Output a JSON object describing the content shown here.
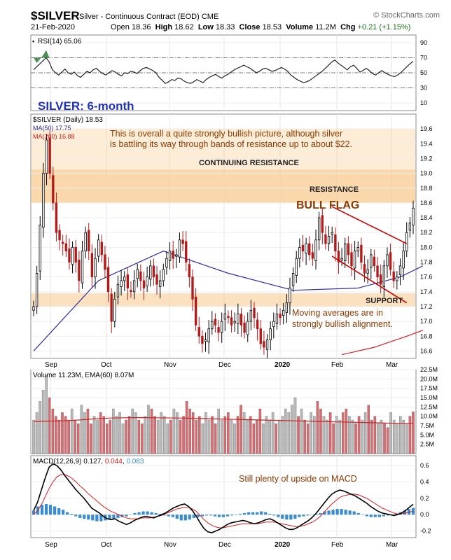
{
  "header": {
    "symbol": "$SILVER",
    "description": "Silver - Continuous Contract (EOD)",
    "exchange": "CME",
    "source": "© StockCharts.com",
    "date": "21-Feb-2020",
    "open_label": "Open",
    "open": "18.36",
    "high_label": "High",
    "high": "18.62",
    "low_label": "Low",
    "low": "18.33",
    "close_label": "Close",
    "close": "18.53",
    "volume_label": "Volume",
    "volume": "11.2M",
    "chg_label": "Chg",
    "chg": "+0.21 (+1.15%)"
  },
  "colors": {
    "background": "#ffffff",
    "candle": "#000000",
    "ma50": "#2e2ea0",
    "ma200": "#cc2222",
    "band": "#f8c98a",
    "annotation": "#8b3a00",
    "title_blue": "#2233bb",
    "vol_up": "#b8b8b8",
    "vol_down": "#d96b70",
    "macd_hist": "#3a8ccf",
    "rsi_fill": "#2e7d32",
    "flag_line": "#cc0000"
  },
  "chart_data": [
    {
      "type": "line",
      "name": "rsi-panel",
      "legend": "RSI(14) 65.06",
      "ylim": [
        0,
        100
      ],
      "y_ticks": [
        90,
        70,
        50,
        30,
        10
      ],
      "ref_lines": [
        70,
        50,
        30
      ],
      "values": [
        54,
        58,
        62,
        66,
        70,
        64,
        54,
        50,
        47,
        51,
        55,
        50,
        48,
        51,
        46,
        44,
        48,
        52,
        50,
        54,
        56,
        52,
        49,
        47,
        50,
        53,
        51,
        48,
        46,
        50,
        49,
        52,
        51,
        49,
        53,
        56,
        57,
        55,
        53,
        50,
        44,
        40,
        36,
        38,
        41,
        40,
        43,
        42,
        39,
        37,
        36,
        38,
        41,
        39,
        37,
        41,
        44,
        46,
        48,
        45,
        43,
        46,
        48,
        51,
        54,
        56,
        58,
        60,
        58,
        56,
        53,
        50,
        52,
        55,
        56,
        54,
        52,
        53,
        55,
        57,
        55,
        52,
        47,
        44,
        41,
        39,
        37,
        38,
        40,
        43,
        46,
        49,
        52,
        56,
        60,
        64,
        67,
        63,
        60,
        57,
        54,
        58,
        60,
        56,
        51,
        53,
        56,
        53,
        49,
        47,
        50,
        53,
        50,
        48,
        46,
        45,
        47,
        50,
        54,
        58,
        62,
        65.06
      ]
    },
    {
      "type": "candlestick",
      "name": "price-panel",
      "legend": "$SILVER (Daily) 18.53",
      "ylim": [
        16.5,
        19.8
      ],
      "y_ticks": [
        19.6,
        19.4,
        19.2,
        19.0,
        18.8,
        18.6,
        18.4,
        18.2,
        18.0,
        17.8,
        17.6,
        17.4,
        17.2,
        17.0,
        16.8,
        16.6
      ],
      "x_labels": [
        "Sep",
        "Oct",
        "Nov",
        "Dec",
        "2020",
        "Feb",
        "Mar"
      ],
      "ma50_label": "MA(50) 17.75",
      "ma200_label": "MA(200) 16.88",
      "ma50_endpoints": [
        [
          0,
          16.6
        ],
        [
          20,
          17.55
        ],
        [
          40,
          17.95
        ],
        [
          60,
          17.65
        ],
        [
          80,
          17.42
        ],
        [
          100,
          17.45
        ],
        [
          113,
          17.6
        ],
        [
          120,
          17.75
        ]
      ],
      "ma200_endpoints": [
        [
          95,
          16.55
        ],
        [
          105,
          16.65
        ],
        [
          115,
          16.8
        ],
        [
          120,
          16.88
        ]
      ],
      "closes": [
        17.2,
        17.65,
        18.3,
        19.0,
        19.45,
        19.0,
        18.6,
        18.2,
        18.1,
        18.05,
        17.95,
        17.8,
        18.0,
        17.8,
        17.55,
        17.95,
        18.2,
        17.95,
        17.6,
        17.85,
        18.1,
        17.9,
        17.7,
        17.4,
        17.0,
        17.3,
        17.5,
        17.55,
        17.6,
        17.45,
        17.4,
        17.55,
        17.7,
        17.55,
        17.45,
        17.6,
        17.75,
        17.6,
        17.5,
        17.55,
        17.7,
        17.85,
        17.95,
        17.85,
        17.9,
        18.1,
        18.05,
        17.8,
        17.6,
        17.3,
        16.95,
        16.8,
        16.7,
        16.75,
        16.9,
        17.0,
        16.95,
        16.85,
        17.0,
        17.1,
        17.05,
        16.95,
        17.0,
        17.1,
        16.95,
        16.85,
        17.0,
        17.15,
        17.05,
        16.9,
        16.7,
        16.65,
        16.75,
        16.9,
        17.0,
        17.1,
        17.05,
        17.15,
        17.25,
        17.45,
        17.65,
        17.85,
        18.0,
        17.95,
        18.05,
        17.9,
        17.85,
        18.1,
        18.4,
        18.2,
        18.05,
        18.15,
        18.2,
        17.95,
        17.8,
        17.85,
        18.05,
        17.9,
        17.75,
        17.95,
        18.0,
        17.8,
        17.65,
        17.7,
        17.9,
        17.75,
        17.6,
        17.5,
        17.75,
        17.9,
        17.7,
        17.55,
        17.6,
        17.75,
        17.95,
        18.2,
        18.33,
        18.53
      ],
      "annotations": {
        "title": "SILVER: 6-month",
        "note1": "This is overall a quite strongly bullish picture, although silver",
        "note2": "is battling its way through bands of resistance up to about $22.",
        "continuing_resistance": "CONTINUING RESISTANCE",
        "resistance": "RESISTANCE",
        "bull_flag": "BULL FLAG",
        "support": "SUPPORT",
        "ma_note1": "Moving averages are in",
        "ma_note2": "strongly bullish alignment."
      },
      "bands": [
        {
          "name": "continuing-resistance",
          "from": 18.6,
          "to": 19.6,
          "opacity": 0.35
        },
        {
          "name": "resistance",
          "from": 18.6,
          "to": 19.05,
          "opacity": 0.55
        },
        {
          "name": "support",
          "from": 17.2,
          "to": 17.38,
          "opacity": 0.55
        }
      ]
    },
    {
      "type": "bar",
      "name": "volume-panel",
      "legend": "Volume 11.23M, EMA(60) 8.07M",
      "ylim": [
        0,
        22.5
      ],
      "y_ticks": [
        "22.5M",
        "20.0M",
        "17.5M",
        "15.0M",
        "12.5M",
        "10.0M",
        "7.5M",
        "5.0M",
        "2.5M"
      ],
      "y_tick_values": [
        22.5,
        20,
        17.5,
        15,
        12.5,
        10,
        7.5,
        5,
        2.5
      ],
      "values": [
        9,
        11,
        14,
        17,
        21,
        15,
        12,
        10,
        9,
        11,
        10,
        9,
        12,
        9,
        8,
        13,
        11,
        12,
        8,
        10,
        9,
        11,
        10,
        8,
        9,
        12,
        10,
        11,
        8,
        9,
        10,
        12,
        11,
        9,
        8,
        10,
        13,
        12,
        10,
        9,
        11,
        10,
        8,
        9,
        12,
        11,
        9,
        10,
        14,
        12,
        11,
        9,
        10,
        8,
        11,
        9,
        10,
        8,
        12,
        9,
        10,
        11,
        9,
        8,
        10,
        13,
        11,
        9,
        10,
        8,
        9,
        12,
        8,
        10,
        9,
        11,
        8,
        9,
        10,
        12,
        11,
        13,
        15,
        10,
        12,
        9,
        8,
        11,
        10,
        14,
        12,
        10,
        9,
        11,
        8,
        10,
        9,
        11,
        12,
        10,
        9,
        8,
        10,
        9,
        11,
        13,
        9,
        10,
        8,
        9,
        8,
        7,
        11,
        9,
        8,
        10,
        9,
        8,
        10,
        11.23
      ],
      "ema": [
        8.6,
        8.7,
        8.8,
        9.0,
        9.3,
        9.5,
        9.6,
        9.65,
        9.6,
        9.55,
        9.5,
        9.4,
        9.3,
        9.2,
        9.1,
        9.0,
        8.9,
        8.8,
        8.7,
        8.6,
        8.5,
        8.4,
        8.3,
        8.2,
        8.1,
        8.07
      ]
    },
    {
      "type": "line",
      "name": "macd-panel",
      "legend_prefix": "MACD(12,26,9)",
      "legend_macd": "0.127",
      "legend_signal": "0.044",
      "legend_hist": "0.083",
      "ylim": [
        -0.28,
        0.72
      ],
      "y_ticks": [
        0.6,
        0.4,
        0.2,
        0.0,
        -0.2
      ],
      "annotation": "Still plenty of upside on MACD",
      "macd": [
        0.05,
        0.15,
        0.3,
        0.45,
        0.58,
        0.62,
        0.6,
        0.55,
        0.48,
        0.42,
        0.36,
        0.3,
        0.25,
        0.2,
        0.14,
        0.08,
        0.05,
        0.02,
        -0.02,
        -0.05,
        -0.06,
        -0.05,
        -0.08,
        -0.1,
        -0.12,
        -0.1,
        -0.07,
        -0.05,
        -0.03,
        -0.02,
        -0.03,
        -0.04,
        -0.02,
        0.0,
        0.02,
        0.05,
        0.08,
        0.1,
        0.12,
        0.13,
        0.1,
        0.05,
        -0.02,
        -0.1,
        -0.17,
        -0.21,
        -0.22,
        -0.2,
        -0.18,
        -0.15,
        -0.12,
        -0.1,
        -0.09,
        -0.08,
        -0.07,
        -0.08,
        -0.1,
        -0.11,
        -0.1,
        -0.08,
        -0.06,
        -0.05,
        -0.07,
        -0.1,
        -0.13,
        -0.16,
        -0.18,
        -0.18,
        -0.16,
        -0.13,
        -0.1,
        -0.07,
        -0.03,
        0.02,
        0.08,
        0.14,
        0.2,
        0.25,
        0.28,
        0.3,
        0.29,
        0.27,
        0.25,
        0.23,
        0.2,
        0.17,
        0.14,
        0.1,
        0.07,
        0.04,
        0.02,
        0.01,
        0.0,
        -0.01,
        0.0,
        0.02,
        0.05,
        0.09,
        0.127
      ],
      "signal": [
        0.0,
        0.05,
        0.12,
        0.22,
        0.32,
        0.4,
        0.46,
        0.49,
        0.49,
        0.47,
        0.44,
        0.4,
        0.35,
        0.31,
        0.26,
        0.22,
        0.18,
        0.14,
        0.1,
        0.07,
        0.04,
        0.02,
        0.0,
        -0.02,
        -0.04,
        -0.05,
        -0.05,
        -0.05,
        -0.04,
        -0.04,
        -0.04,
        -0.03,
        -0.02,
        -0.01,
        0.01,
        0.03,
        0.05,
        0.07,
        0.08,
        0.09,
        0.09,
        0.07,
        0.04,
        -0.01,
        -0.06,
        -0.1,
        -0.13,
        -0.15,
        -0.16,
        -0.16,
        -0.15,
        -0.14,
        -0.13,
        -0.12,
        -0.11,
        -0.11,
        -0.11,
        -0.11,
        -0.11,
        -0.1,
        -0.09,
        -0.09,
        -0.09,
        -0.1,
        -0.11,
        -0.12,
        -0.13,
        -0.14,
        -0.15,
        -0.14,
        -0.13,
        -0.11,
        -0.09,
        -0.06,
        -0.02,
        0.03,
        0.08,
        0.13,
        0.17,
        0.21,
        0.23,
        0.24,
        0.25,
        0.25,
        0.24,
        0.22,
        0.2,
        0.17,
        0.14,
        0.11,
        0.08,
        0.06,
        0.04,
        0.02,
        0.01,
        0.01,
        0.02,
        0.03,
        0.044
      ],
      "hist": [
        0.05,
        0.1,
        0.12,
        0.13,
        0.12,
        0.1,
        0.08,
        0.06,
        0.03,
        0.01,
        -0.02,
        -0.04,
        -0.05,
        -0.06,
        -0.07,
        -0.08,
        -0.08,
        -0.07,
        -0.06,
        -0.05,
        -0.04,
        -0.03,
        -0.02,
        0.0,
        0.02,
        0.03,
        0.04,
        0.04,
        0.03,
        0.02,
        0.01,
        -0.01,
        -0.02,
        -0.03,
        -0.05,
        -0.07,
        -0.07,
        -0.06,
        -0.04,
        -0.03,
        -0.02,
        -0.01,
        -0.01,
        -0.02,
        -0.03,
        -0.03,
        -0.02,
        -0.01,
        0.0,
        0.01,
        0.02,
        0.03,
        0.03,
        0.03,
        0.04,
        0.03,
        0.01,
        -0.01,
        -0.03,
        -0.05,
        -0.06,
        -0.06,
        -0.05,
        -0.03,
        -0.02,
        -0.01,
        0.0,
        0.01,
        0.02,
        0.04,
        0.05,
        0.06,
        0.07,
        0.07,
        0.06,
        0.05,
        0.04,
        0.02,
        0.0,
        -0.02,
        -0.03,
        -0.03,
        -0.03,
        -0.02,
        -0.01,
        0.0,
        0.01,
        0.03,
        0.05,
        0.07,
        0.083
      ]
    }
  ]
}
